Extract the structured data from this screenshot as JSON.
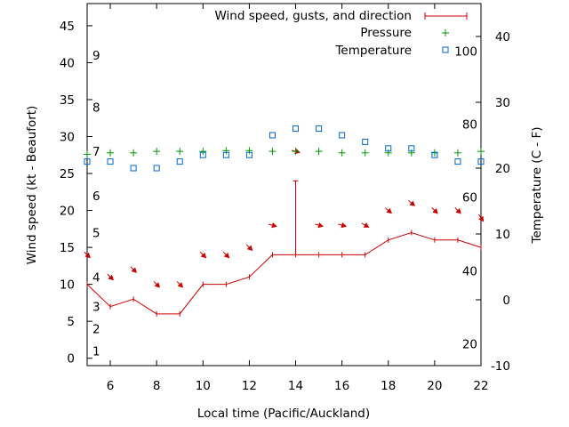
{
  "chart_data": {
    "type": "line",
    "xlabel": "Local time (Pacific/Auckland)",
    "ylabel_left": "Wind speed (kt - Beaufort)",
    "ylabel_right": "Temperature (C - F)",
    "x_range": [
      5,
      22
    ],
    "y_range": [
      -1,
      48
    ],
    "temp_range": [
      -10,
      45
    ],
    "x_ticks": [
      6,
      8,
      10,
      12,
      14,
      16,
      18,
      20,
      22
    ],
    "y_ticks": [
      0,
      5,
      10,
      15,
      20,
      25,
      30,
      35,
      40,
      45
    ],
    "temp_ticks": [
      -10,
      0,
      10,
      20,
      30,
      40
    ],
    "fahrenheit_labels": [
      {
        "label": "20",
        "temp_c": -6.7
      },
      {
        "label": "40",
        "temp_c": 4.4
      },
      {
        "label": "60",
        "temp_c": 15.6
      },
      {
        "label": "80",
        "temp_c": 26.7
      },
      {
        "label": "100",
        "temp_c": 37.8
      }
    ],
    "beaufort_labels": [
      {
        "label": "1",
        "speed": 1
      },
      {
        "label": "2",
        "speed": 4
      },
      {
        "label": "3",
        "speed": 7
      },
      {
        "label": "4",
        "speed": 11
      },
      {
        "label": "5",
        "speed": 17
      },
      {
        "label": "6",
        "speed": 22
      },
      {
        "label": "7",
        "speed": 28
      },
      {
        "label": "8",
        "speed": 34
      },
      {
        "label": "9",
        "speed": 41
      }
    ],
    "legend": {
      "position": "top-right",
      "entries": [
        "Wind speed, gusts, and direction",
        "Pressure",
        "Temperature"
      ]
    },
    "series": [
      {
        "name": "Wind speed, gusts, and direction",
        "color": "#cc0000",
        "x": [
          5,
          6,
          7,
          8,
          9,
          10,
          11,
          12,
          13,
          14,
          15,
          16,
          17,
          18,
          19,
          20,
          21,
          22
        ],
        "values": [
          10,
          7,
          8,
          6,
          6,
          10,
          10,
          11,
          14,
          14,
          14,
          14,
          14,
          16,
          17,
          16,
          16,
          15
        ],
        "gusts": [
          {
            "x": 14,
            "value": 24
          }
        ],
        "direction_arrow_y": [
          14,
          11,
          12,
          10,
          10,
          14,
          14,
          15,
          18,
          28,
          18,
          18,
          18,
          20,
          21,
          20,
          20,
          19
        ],
        "direction_angle_deg": [
          45,
          45,
          45,
          45,
          45,
          45,
          45,
          45,
          15,
          15,
          15,
          15,
          30,
          40,
          40,
          45,
          45,
          55
        ]
      },
      {
        "name": "Pressure",
        "color": "#009900",
        "marker": "plus",
        "x": [
          5,
          6,
          7,
          8,
          9,
          10,
          11,
          12,
          13,
          14,
          15,
          16,
          17,
          18,
          19,
          20,
          21,
          22
        ],
        "values": [
          27.6,
          27.8,
          27.8,
          28.0,
          28.0,
          28.0,
          28.1,
          28.1,
          28.0,
          28.0,
          28.0,
          27.8,
          27.8,
          27.8,
          27.8,
          27.8,
          27.8,
          28.0
        ]
      },
      {
        "name": "Temperature",
        "color": "#0066cc",
        "marker": "square",
        "axis": "right",
        "x": [
          5,
          6,
          7,
          8,
          9,
          10,
          11,
          12,
          13,
          14,
          15,
          16,
          17,
          18,
          19,
          20,
          21,
          22
        ],
        "values": [
          21,
          21,
          20,
          20,
          21,
          22,
          22,
          22,
          25,
          26,
          26,
          25,
          24,
          23,
          23,
          22,
          21,
          21
        ]
      }
    ]
  }
}
